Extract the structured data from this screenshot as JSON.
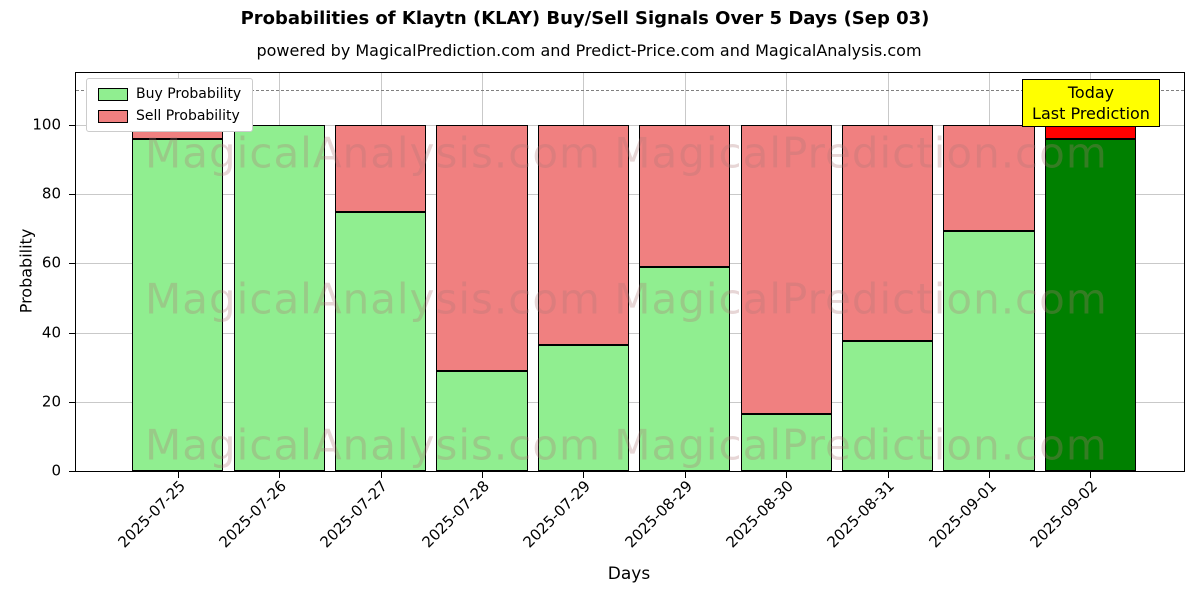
{
  "chart_data": {
    "type": "bar",
    "stacked": true,
    "title": "Probabilities of Klaytn (KLAY) Buy/Sell Signals Over 5 Days (Sep 03)",
    "subtitle": "powered by MagicalPrediction.com and Predict-Price.com and MagicalAnalysis.com",
    "xlabel": "Days",
    "ylabel": "Probability",
    "ylim": [
      0,
      115
    ],
    "yticks": [
      0,
      20,
      40,
      60,
      80,
      100
    ],
    "grid": true,
    "legend_position": "upper left",
    "categories": [
      "2025-07-25",
      "2025-07-26",
      "2025-07-27",
      "2025-07-28",
      "2025-07-29",
      "2025-08-29",
      "2025-08-30",
      "2025-08-31",
      "2025-09-01",
      "2025-09-02"
    ],
    "series": [
      {
        "name": "Buy Probability",
        "color": "#90ee90",
        "values": [
          96,
          100,
          75,
          29,
          36.5,
          59,
          16.5,
          37.5,
          69.5,
          96
        ]
      },
      {
        "name": "Sell Probability",
        "color": "#f08080",
        "values": [
          4,
          0,
          25,
          71,
          63.5,
          41,
          83.5,
          62.5,
          30.5,
          4
        ]
      }
    ],
    "today_bar": {
      "index": 9,
      "buy_color": "#008000",
      "sell_color": "#ff0000"
    },
    "dashed_guide_y": 110,
    "bar_edge_color": "#000000",
    "grid_color": "#c9c9c9"
  },
  "annotation_box": {
    "line1": "Today",
    "line2": "Last Prediction",
    "bg_color": "#ffff00"
  },
  "watermarks": {
    "left": "MagicalAnalysis.com",
    "right": "MagicalPrediction.com"
  }
}
